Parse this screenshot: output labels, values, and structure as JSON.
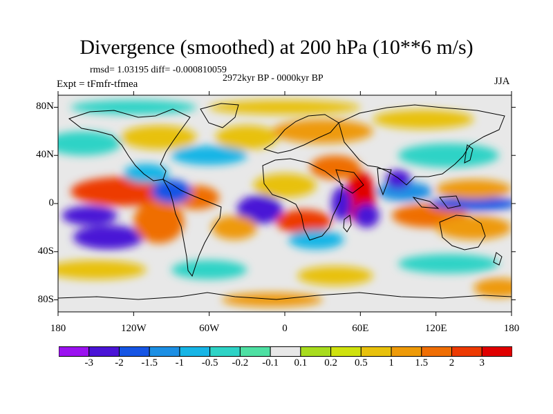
{
  "header": {
    "title": "Divergence (smoothed) at 200 hPa (10**6 m/s)",
    "stats": "rmsd= 1.03195 diff= -0.000810059",
    "period": "2972kyr BP - 0000kyr BP",
    "experiment": "Expt = tFmfr-tfmea",
    "season": "JJA"
  },
  "map": {
    "projection": "cylindrical equidistant",
    "lon_range": [
      -180,
      180
    ],
    "lat_range": [
      -90,
      90
    ],
    "x_ticks": [
      {
        "lon": -180,
        "label": "180"
      },
      {
        "lon": -120,
        "label": "120W"
      },
      {
        "lon": -60,
        "label": "60W"
      },
      {
        "lon": 0,
        "label": "0"
      },
      {
        "lon": 60,
        "label": "60E"
      },
      {
        "lon": 120,
        "label": "120E"
      },
      {
        "lon": 180,
        "label": "180"
      }
    ],
    "y_ticks": [
      {
        "lat": 80,
        "label": "80N"
      },
      {
        "lat": 40,
        "label": "40N"
      },
      {
        "lat": 0,
        "label": "0"
      },
      {
        "lat": -40,
        "label": "40S"
      },
      {
        "lat": -80,
        "label": "80S"
      }
    ],
    "blobs": [
      {
        "lon": -130,
        "lat": 10,
        "rlon": 40,
        "rlat": 12,
        "level": 2
      },
      {
        "lon": -155,
        "lat": -10,
        "rlon": 22,
        "rlat": 8,
        "level": -3
      },
      {
        "lon": -140,
        "lat": -28,
        "rlon": 28,
        "rlat": 10,
        "level": -3
      },
      {
        "lon": -100,
        "lat": -15,
        "rlon": 20,
        "rlat": 18,
        "level": 1.5
      },
      {
        "lon": -70,
        "lat": 5,
        "rlon": 18,
        "rlat": 10,
        "level": 1.5
      },
      {
        "lon": -90,
        "lat": 10,
        "rlon": 16,
        "rlat": 10,
        "level": -2
      },
      {
        "lon": -110,
        "lat": 25,
        "rlon": 18,
        "rlat": 8,
        "level": -1
      },
      {
        "lon": -20,
        "lat": -5,
        "rlon": 18,
        "rlat": 12,
        "level": -3
      },
      {
        "lon": 15,
        "lat": -15,
        "rlon": 22,
        "rlat": 10,
        "level": 2
      },
      {
        "lon": -40,
        "lat": -20,
        "rlon": 18,
        "rlat": 10,
        "level": 1
      },
      {
        "lon": 0,
        "lat": 15,
        "rlon": 25,
        "rlat": 10,
        "level": 0.5
      },
      {
        "lon": 25,
        "lat": -30,
        "rlon": 22,
        "rlat": 8,
        "level": -1
      },
      {
        "lon": 60,
        "lat": 5,
        "rlon": 12,
        "rlat": 22,
        "level": 3
      },
      {
        "lon": 45,
        "lat": 0,
        "rlon": 8,
        "rlat": 14,
        "level": -3
      },
      {
        "lon": 65,
        "lat": -10,
        "rlon": 10,
        "rlat": 10,
        "level": -3
      },
      {
        "lon": 40,
        "lat": 30,
        "rlon": 20,
        "rlat": 10,
        "level": 1.5
      },
      {
        "lon": 95,
        "lat": 10,
        "rlon": 22,
        "rlat": 8,
        "level": -1.5
      },
      {
        "lon": 90,
        "lat": 20,
        "rlon": 10,
        "rlat": 8,
        "level": -3
      },
      {
        "lon": 115,
        "lat": -10,
        "rlon": 30,
        "rlat": 10,
        "level": 1.5
      },
      {
        "lon": 150,
        "lat": 0,
        "rlon": 35,
        "rlat": 6,
        "level": -2
      },
      {
        "lon": 150,
        "lat": 12,
        "rlon": 30,
        "rlat": 8,
        "level": 1
      },
      {
        "lon": 150,
        "lat": -20,
        "rlon": 30,
        "rlat": 10,
        "level": 1
      },
      {
        "lon": 130,
        "lat": 40,
        "rlon": 40,
        "rlat": 10,
        "level": -0.5
      },
      {
        "lon": -60,
        "lat": 40,
        "rlon": 30,
        "rlat": 8,
        "level": -1
      },
      {
        "lon": -30,
        "lat": 55,
        "rlon": 25,
        "rlat": 10,
        "level": 0.5
      },
      {
        "lon": -100,
        "lat": 55,
        "rlon": 30,
        "rlat": 10,
        "level": 0.5
      },
      {
        "lon": 30,
        "lat": 60,
        "rlon": 40,
        "rlat": 10,
        "level": 1
      },
      {
        "lon": -160,
        "lat": 50,
        "rlon": 30,
        "rlat": 10,
        "level": -0.5
      },
      {
        "lon": 0,
        "lat": 80,
        "rlon": 60,
        "rlat": 6,
        "level": 0.5
      },
      {
        "lon": 110,
        "lat": 70,
        "rlon": 40,
        "rlat": 8,
        "level": 0.5
      },
      {
        "lon": -120,
        "lat": 80,
        "rlon": 50,
        "rlat": 6,
        "level": -0.5
      },
      {
        "lon": -150,
        "lat": -55,
        "rlon": 40,
        "rlat": 8,
        "level": 0.5
      },
      {
        "lon": -60,
        "lat": -55,
        "rlon": 30,
        "rlat": 8,
        "level": -0.5
      },
      {
        "lon": 40,
        "lat": -60,
        "rlon": 30,
        "rlat": 8,
        "level": 0.5
      },
      {
        "lon": 130,
        "lat": -50,
        "rlon": 40,
        "rlat": 8,
        "level": -0.5
      },
      {
        "lon": 170,
        "lat": -70,
        "rlon": 20,
        "rlat": 8,
        "level": 1
      },
      {
        "lon": -10,
        "lat": -80,
        "rlon": 40,
        "rlat": 6,
        "level": 1
      }
    ]
  },
  "legend": {
    "colors": [
      "#9b12f0",
      "#4a14d6",
      "#1655e4",
      "#1c8fe4",
      "#17b5e6",
      "#2ed3c6",
      "#4ee0a3",
      "#e8e8e8",
      "#a8dc1e",
      "#cfe20e",
      "#e8c10c",
      "#ee9a08",
      "#ef6e04",
      "#ed3a02",
      "#e00000"
    ],
    "labels": [
      "-3",
      "-2",
      "-1.5",
      "-1",
      "-0.5",
      "-0.2",
      "-0.1",
      "0.1",
      "0.2",
      "0.5",
      "1",
      "1.5",
      "2",
      "3"
    ],
    "thresholds": [
      -3,
      -2,
      -1.5,
      -1,
      -0.5,
      -0.2,
      -0.1,
      0.1,
      0.2,
      0.5,
      1,
      1.5,
      2,
      3
    ]
  }
}
